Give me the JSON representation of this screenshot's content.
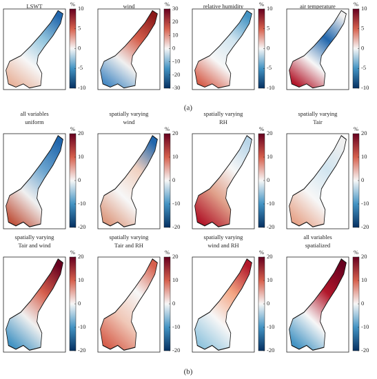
{
  "figure": {
    "part_a": {
      "label": "(a)",
      "panels": [
        {
          "title_lines": [
            "LSWT"
          ],
          "unit": "%",
          "colorbar": {
            "lim": [
              -10,
              10
            ],
            "ticks": [
              -10,
              -5,
              0,
              5,
              10
            ]
          }
        },
        {
          "title_lines": [
            "wind"
          ],
          "unit": "%",
          "colorbar": {
            "lim": [
              -30,
              30
            ],
            "ticks": [
              -30,
              -20,
              -10,
              0,
              10,
              20,
              30
            ]
          }
        },
        {
          "title_lines": [
            "relative humidity"
          ],
          "unit": "%",
          "colorbar": {
            "lim": [
              -10,
              10
            ],
            "ticks": [
              -10,
              -5,
              0,
              5,
              10
            ]
          }
        },
        {
          "title_lines": [
            "air temperature"
          ],
          "unit": "%",
          "colorbar": {
            "lim": [
              -10,
              10
            ],
            "ticks": [
              -10,
              -5,
              0,
              5,
              10
            ]
          }
        }
      ]
    },
    "part_b": {
      "label": "(b)",
      "panels": [
        {
          "title_lines": [
            "all variables",
            "uniform"
          ],
          "unit": "%",
          "colorbar": {
            "lim": [
              -20,
              20
            ],
            "ticks": [
              -20,
              -10,
              0,
              10,
              20
            ]
          }
        },
        {
          "title_lines": [
            "spatially varying",
            "wind"
          ],
          "unit": "%",
          "colorbar": {
            "lim": [
              -20,
              20
            ],
            "ticks": [
              -20,
              -10,
              0,
              10,
              20
            ]
          }
        },
        {
          "title_lines": [
            "spatially varying",
            "RH"
          ],
          "unit": "%",
          "colorbar": {
            "lim": [
              -20,
              20
            ],
            "ticks": [
              -20,
              -10,
              0,
              10,
              20
            ]
          }
        },
        {
          "title_lines": [
            "spatially varying",
            "Tair"
          ],
          "unit": "%",
          "colorbar": {
            "lim": [
              -20,
              20
            ],
            "ticks": [
              -20,
              -10,
              0,
              10,
              20
            ]
          }
        },
        {
          "title_lines": [
            "spatially varying",
            "Tair and wind"
          ],
          "unit": "%",
          "colorbar": {
            "lim": [
              -20,
              20
            ],
            "ticks": [
              -20,
              -10,
              0,
              10,
              20
            ]
          }
        },
        {
          "title_lines": [
            "spatially varying",
            "Tair and RH"
          ],
          "unit": "%",
          "colorbar": {
            "lim": [
              -20,
              20
            ],
            "ticks": [
              -20,
              -10,
              0,
              10,
              20
            ]
          }
        },
        {
          "title_lines": [
            "spatially varying",
            "wind and RH"
          ],
          "unit": "%",
          "colorbar": {
            "lim": [
              -20,
              20
            ],
            "ticks": [
              -20,
              -10,
              0,
              10,
              20
            ]
          }
        },
        {
          "title_lines": [
            "all variables",
            "spatialized"
          ],
          "unit": "%",
          "colorbar": {
            "lim": [
              -20,
              20
            ],
            "ticks": [
              -20,
              -10,
              0,
              10,
              20
            ]
          }
        }
      ]
    }
  }
}
